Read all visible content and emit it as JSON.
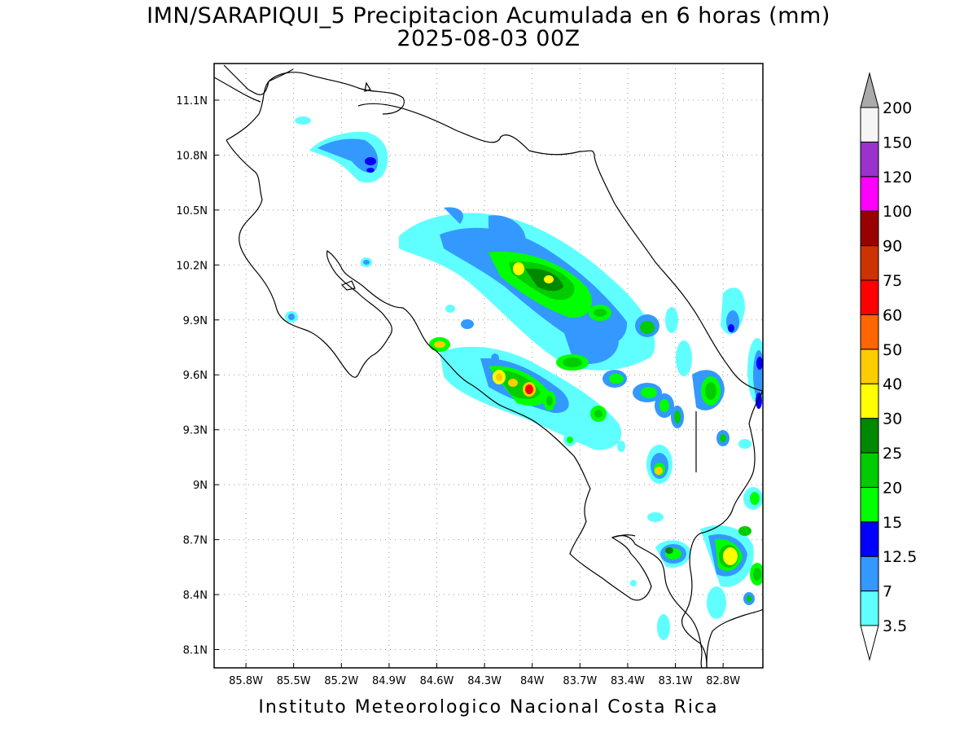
{
  "title": {
    "line1": "IMN/SARAPIQUI_5 Precipitacion Acumulada en 6 horas (mm)",
    "line2": "2025-08-03 00Z"
  },
  "footer": "Instituto Meteorologico Nacional Costa Rica",
  "map": {
    "lon_range": [
      -86.0,
      -82.55
    ],
    "lat_range": [
      8.0,
      11.3
    ],
    "lon_ticks": [
      {
        "value": -85.8,
        "label": "85.8W"
      },
      {
        "value": -85.5,
        "label": "85.5W"
      },
      {
        "value": -85.2,
        "label": "85.2W"
      },
      {
        "value": -84.9,
        "label": "84.9W"
      },
      {
        "value": -84.6,
        "label": "84.6W"
      },
      {
        "value": -84.3,
        "label": "84.3W"
      },
      {
        "value": -84.0,
        "label": "84W"
      },
      {
        "value": -83.7,
        "label": "83.7W"
      },
      {
        "value": -83.4,
        "label": "83.4W"
      },
      {
        "value": -83.1,
        "label": "83.1W"
      },
      {
        "value": -82.8,
        "label": "82.8W"
      }
    ],
    "lat_ticks": [
      {
        "value": 11.1,
        "label": "11.1N"
      },
      {
        "value": 10.8,
        "label": "10.8N"
      },
      {
        "value": 10.5,
        "label": "10.5N"
      },
      {
        "value": 10.2,
        "label": "10.2N"
      },
      {
        "value": 9.9,
        "label": "9.9N"
      },
      {
        "value": 9.6,
        "label": "9.6N"
      },
      {
        "value": 9.3,
        "label": "9.3N"
      },
      {
        "value": 9.0,
        "label": "9N"
      },
      {
        "value": 8.7,
        "label": "8.7N"
      },
      {
        "value": 8.4,
        "label": "8.4N"
      },
      {
        "value": 8.1,
        "label": "8.1N"
      }
    ],
    "grid": true
  },
  "colorbar": {
    "levels": [
      {
        "label": "3.5",
        "color": "#60ffff"
      },
      {
        "label": "7",
        "color": "#3399ff"
      },
      {
        "label": "12.5",
        "color": "#0000ff"
      },
      {
        "label": "15",
        "color": "#00ff00"
      },
      {
        "label": "20",
        "color": "#00cc00"
      },
      {
        "label": "25",
        "color": "#008800"
      },
      {
        "label": "30",
        "color": "#ffff00"
      },
      {
        "label": "40",
        "color": "#ffcc00"
      },
      {
        "label": "50",
        "color": "#ff6600"
      },
      {
        "label": "60",
        "color": "#ff0000"
      },
      {
        "label": "75",
        "color": "#cc3300"
      },
      {
        "label": "90",
        "color": "#990000"
      },
      {
        "label": "100",
        "color": "#ff00ff"
      },
      {
        "label": "120",
        "color": "#9933cc"
      },
      {
        "label": "150",
        "color": "#f5f5f5"
      },
      {
        "label": "200",
        "color": "#aaaaaa"
      }
    ]
  }
}
